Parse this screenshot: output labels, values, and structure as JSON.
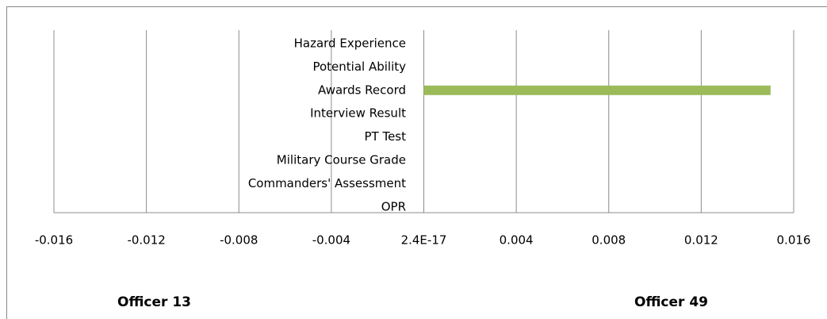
{
  "chart_data": {
    "type": "barh",
    "categories": [
      "Hazard Experience",
      "Potential Ability",
      "Awards Record",
      "Interview Result",
      "PT Test",
      "Military Course Grade",
      "Commanders' Assessment",
      "OPR"
    ],
    "values": [
      0,
      0,
      0.015,
      0,
      0,
      0,
      0,
      0
    ],
    "color": "#9bbb59",
    "xlim": [
      -0.016,
      0.016
    ],
    "xticks": [
      -0.016,
      -0.012,
      -0.008,
      -0.004,
      {
        "value": 2.4e-17,
        "label": "2.4E-17"
      },
      0.004,
      0.008,
      0.012,
      0.016
    ],
    "grid": true,
    "annotations": [
      "Officer 13",
      "Officer 49"
    ]
  }
}
